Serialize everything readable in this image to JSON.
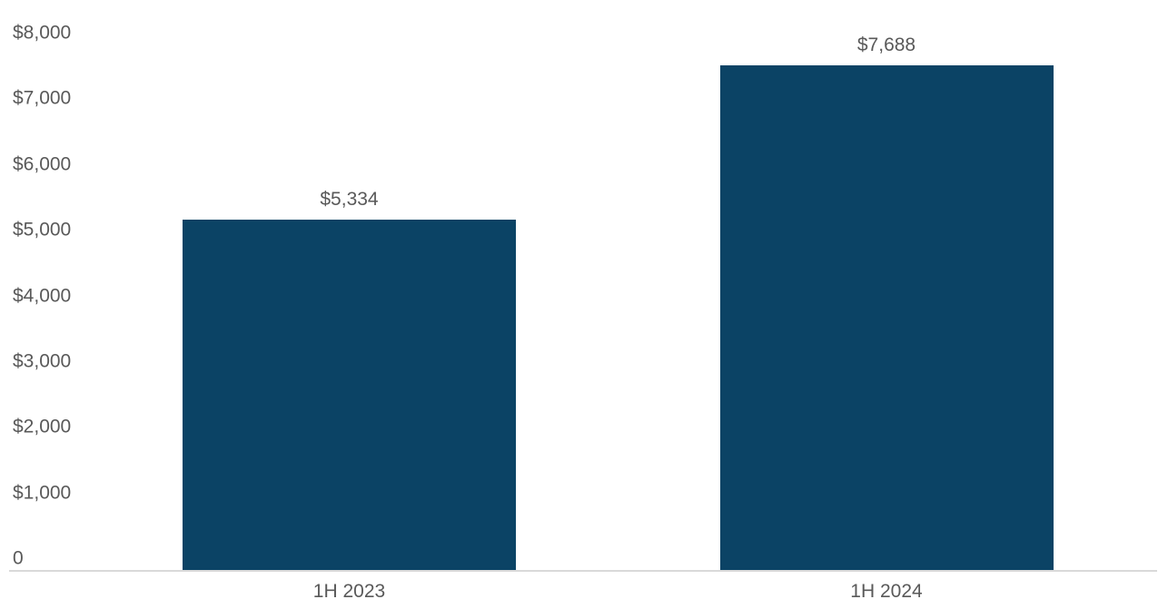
{
  "chart_data": {
    "type": "bar",
    "title": "",
    "xlabel": "",
    "ylabel": "",
    "categories": [
      "1H 2023",
      "1H 2024"
    ],
    "values": [
      5334,
      7688
    ],
    "value_labels": [
      "$5,334",
      "$7,688"
    ],
    "ylim": [
      0,
      8000
    ],
    "y_tick_interval": 1000,
    "y_ticks": [
      {
        "value": 8000,
        "label": "$8,000"
      },
      {
        "value": 7000,
        "label": "$7,000"
      },
      {
        "value": 6000,
        "label": "$6,000"
      },
      {
        "value": 5000,
        "label": "$5,000"
      },
      {
        "value": 4000,
        "label": "$4,000"
      },
      {
        "value": 3000,
        "label": "$3,000"
      },
      {
        "value": 2000,
        "label": "$2,000"
      },
      {
        "value": 1000,
        "label": "$1,000"
      },
      {
        "value": 0,
        "label": "0"
      }
    ],
    "grid": false,
    "legend": false,
    "colors": {
      "bar": "#0b4365",
      "axis_line": "#d9d9d9",
      "tick_label": "#595959",
      "value_label": "#595959",
      "category_label": "#595959",
      "background": "#ffffff"
    }
  }
}
